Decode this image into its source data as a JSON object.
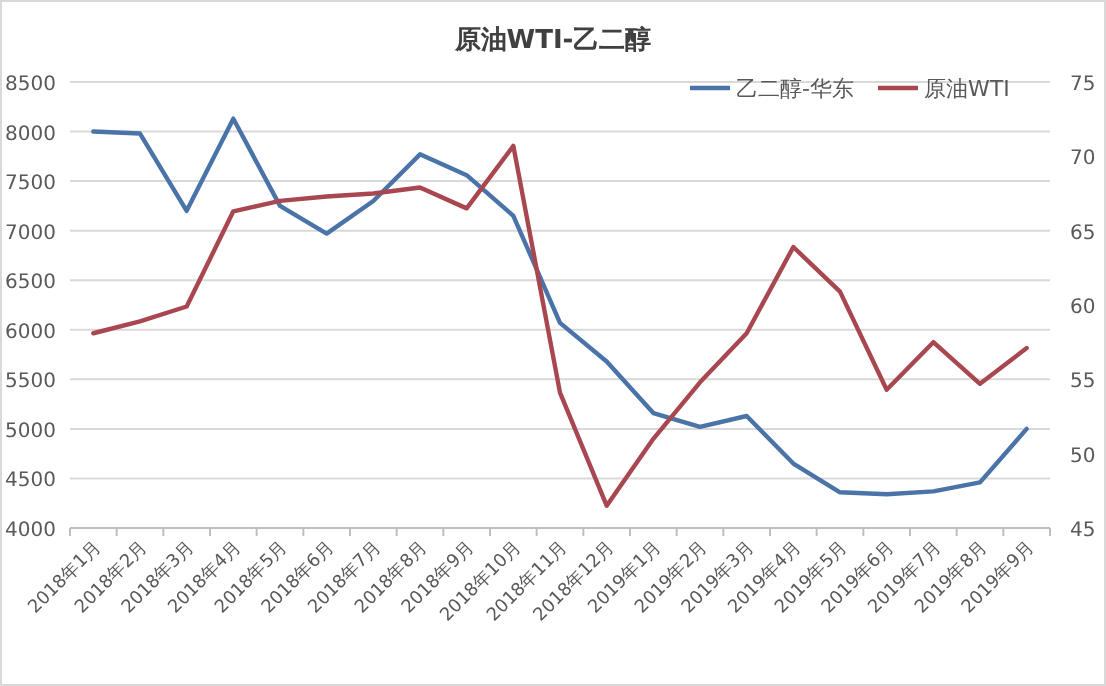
{
  "chart_data": {
    "type": "line",
    "title": "原油WTI-乙二醇",
    "categories": [
      "2018年1月",
      "2018年2月",
      "2018年3月",
      "2018年4月",
      "2018年5月",
      "2018年6月",
      "2018年7月",
      "2018年8月",
      "2018年9月",
      "2018年10月",
      "2018年11月",
      "2018年12月",
      "2019年1月",
      "2019年2月",
      "2019年3月",
      "2019年4月",
      "2019年5月",
      "2019年6月",
      "2019年7月",
      "2019年8月",
      "2019年9月"
    ],
    "series": [
      {
        "name": "乙二醇-华东",
        "color": "#4a74a8",
        "values": [
          8000,
          7980,
          7200,
          8130,
          7250,
          6970,
          7300,
          7770,
          7560,
          7150,
          6070,
          5680,
          5160,
          5020,
          5130,
          4650,
          4360,
          4340,
          4370,
          4460,
          5000
        ]
      },
      {
        "name": "原油WTI",
        "color": "#a8474f",
        "axis": "y2",
        "values": [
          58.1,
          58.9,
          59.9,
          66.3,
          67.0,
          67.3,
          67.5,
          67.9,
          66.5,
          70.7,
          54.1,
          46.5,
          51.0,
          54.8,
          58.1,
          63.9,
          60.9,
          54.3,
          57.5,
          54.7,
          57.1
        ]
      }
    ],
    "ylim": [
      4000,
      8500
    ],
    "yticks": [
      4000,
      4500,
      5000,
      5500,
      6000,
      6500,
      7000,
      7500,
      8000,
      8500
    ],
    "y2lim": [
      45,
      75
    ],
    "y2ticks": [
      45,
      50,
      55,
      60,
      65,
      70,
      75
    ],
    "grid": "y",
    "legend": "top right"
  }
}
